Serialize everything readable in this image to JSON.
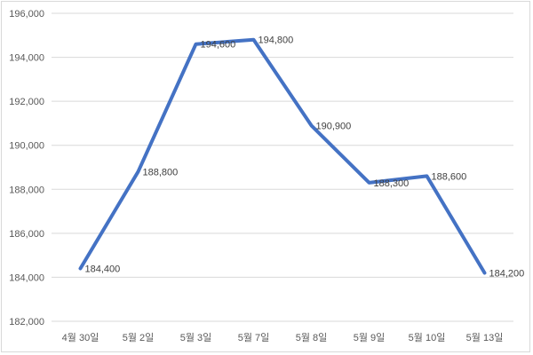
{
  "chart_data": {
    "type": "line",
    "title": "",
    "xlabel": "",
    "ylabel": "",
    "categories": [
      "4월 30일",
      "5월 2일",
      "5월 3일",
      "5월 7일",
      "5월 8일",
      "5월 9일",
      "5월 10일",
      "5월 13일"
    ],
    "series": [
      {
        "values": [
          184400,
          188800,
          194600,
          194800,
          190900,
          188300,
          188600,
          184200
        ]
      }
    ],
    "data_labels": [
      "184,400",
      "188,800",
      "194,600",
      "194,800",
      "190,900",
      "188,300",
      "188,600",
      "184,200"
    ],
    "y_ticks": [
      "182,000",
      "184,000",
      "186,000",
      "188,000",
      "190,000",
      "192,000",
      "194,000",
      "196,000"
    ],
    "ylim": [
      182000,
      196000
    ],
    "grid": true,
    "legend": "none",
    "line_color": "#4472c4"
  }
}
